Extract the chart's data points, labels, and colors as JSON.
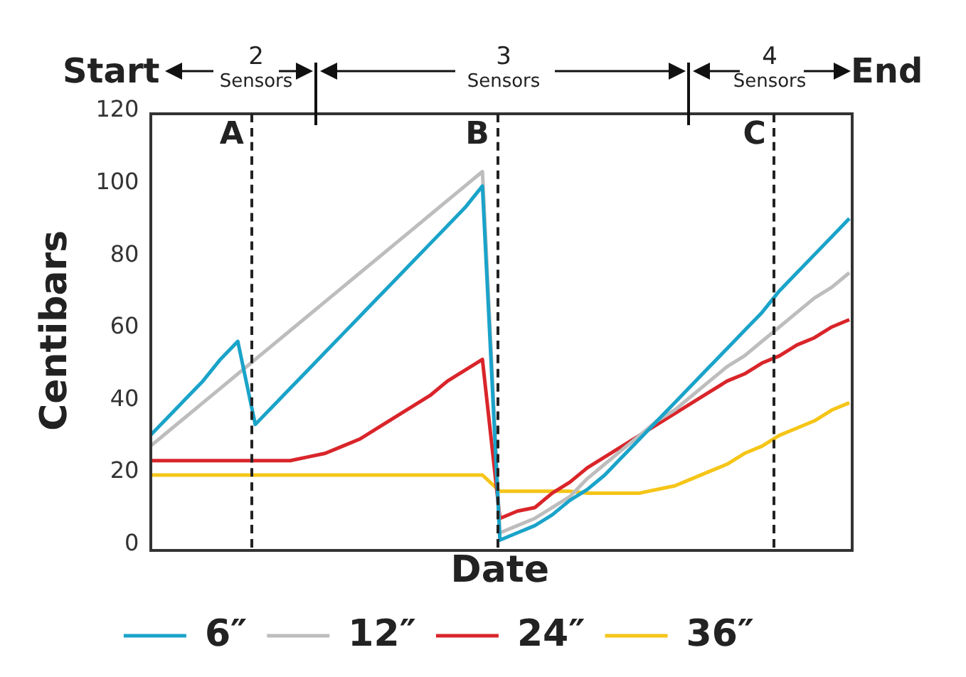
{
  "chart_data": {
    "type": "line",
    "xlabel": "Date",
    "ylabel": "Centibars",
    "ylim": [
      0,
      120
    ],
    "yticks": [
      0,
      20,
      40,
      60,
      80,
      100,
      120
    ],
    "tick_labels": "y",
    "grid": false,
    "legend": "bottom",
    "marker": "none",
    "line_style": "solid",
    "categories": [
      null,
      null,
      null,
      null,
      null,
      null,
      null,
      null,
      null,
      null,
      null,
      null,
      null,
      null,
      null,
      null,
      null,
      null,
      null,
      null,
      null,
      null,
      null,
      null,
      null,
      null,
      null,
      null,
      null,
      null,
      null,
      null,
      null,
      null,
      null,
      null,
      null,
      null,
      null,
      null,
      null
    ],
    "series": [
      {
        "name": "6″",
        "color": "#1aa3c9",
        "values": [
          31,
          36,
          41,
          46,
          52,
          57,
          34,
          39,
          44,
          49,
          54,
          59,
          64,
          69,
          74,
          79,
          84,
          89,
          94,
          100,
          2,
          4,
          6,
          9,
          13,
          16,
          20,
          25,
          30,
          35,
          40,
          45,
          50,
          55,
          60,
          65,
          71,
          76,
          81,
          86,
          91
        ]
      },
      {
        "name": "12″",
        "color": "#bdbdbd",
        "values": [
          28,
          32,
          36,
          40,
          44,
          48,
          52,
          56,
          60,
          64,
          68,
          72,
          76,
          80,
          84,
          88,
          92,
          96,
          100,
          104,
          4,
          6,
          8,
          11,
          14,
          19,
          23,
          27,
          31,
          35,
          38,
          42,
          46,
          50,
          53,
          57,
          61,
          65,
          69,
          72,
          76
        ]
      },
      {
        "name": "24″",
        "color": "#d9252a",
        "values": [
          24,
          24,
          24,
          24,
          24,
          24,
          24,
          24,
          24,
          25,
          26,
          28,
          30,
          33,
          36,
          39,
          42,
          46,
          49,
          52,
          8,
          10,
          11,
          15,
          18,
          22,
          25,
          28,
          31,
          34,
          37,
          40,
          43,
          46,
          48,
          51,
          53,
          56,
          58,
          61,
          63
        ]
      },
      {
        "name": "36″",
        "color": "#f5c518",
        "values": [
          20,
          20,
          20,
          20,
          20,
          20,
          20,
          20,
          20,
          20,
          20,
          20,
          20,
          20,
          20,
          20,
          20,
          20,
          20,
          20,
          15.5,
          15.5,
          15.5,
          15.5,
          15.5,
          15,
          15,
          15,
          15,
          16,
          17,
          19,
          21,
          23,
          26,
          28,
          31,
          33,
          35,
          38,
          40
        ]
      }
    ],
    "annotations": [
      "Start",
      "2 Sensors",
      "3 Sensors",
      "4 Sensors",
      "End",
      "A",
      "B",
      "C"
    ]
  }
}
